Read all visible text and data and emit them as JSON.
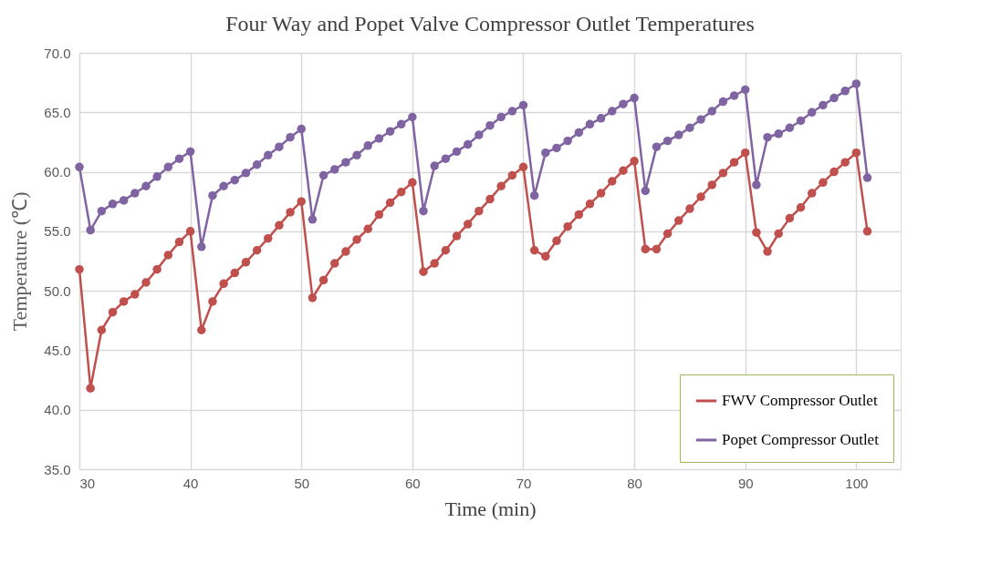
{
  "chart_data": {
    "type": "line",
    "title": "Four Way and Popet Valve  Compressor Outlet Temperatures",
    "xlabel": "Time (min)",
    "ylabel": "Temperature (℃)",
    "x": [
      30,
      31,
      32,
      33,
      34,
      35,
      36,
      37,
      38,
      39,
      40,
      41,
      42,
      43,
      44,
      45,
      46,
      47,
      48,
      49,
      50,
      51,
      52,
      53,
      54,
      55,
      56,
      57,
      58,
      59,
      60,
      61,
      62,
      63,
      64,
      65,
      66,
      67,
      68,
      69,
      70,
      71,
      72,
      73,
      74,
      75,
      76,
      77,
      78,
      79,
      80,
      81,
      82,
      83,
      84,
      85,
      86,
      87,
      88,
      89,
      90,
      91,
      92,
      93,
      94,
      95,
      96,
      97,
      98,
      99,
      100,
      101
    ],
    "series": [
      {
        "name": "FWV Compressor Outlet",
        "color": "#c0504d",
        "values": [
          51.8,
          41.8,
          46.7,
          48.2,
          49.1,
          49.7,
          50.7,
          51.8,
          53.0,
          54.1,
          55.0,
          46.7,
          49.1,
          50.6,
          51.5,
          52.4,
          53.4,
          54.4,
          55.5,
          56.6,
          57.5,
          49.4,
          50.9,
          52.3,
          53.3,
          54.3,
          55.2,
          56.4,
          57.4,
          58.3,
          59.1,
          51.6,
          52.3,
          53.4,
          54.6,
          55.6,
          56.7,
          57.7,
          58.8,
          59.7,
          60.4,
          53.4,
          52.9,
          54.2,
          55.4,
          56.4,
          57.3,
          58.2,
          59.2,
          60.1,
          60.9,
          53.5,
          53.5,
          54.8,
          55.9,
          56.9,
          57.9,
          58.9,
          59.9,
          60.8,
          61.6,
          54.9,
          53.3,
          54.8,
          56.1,
          57.0,
          58.2,
          59.1,
          60.0,
          60.8,
          61.6,
          55.0
        ]
      },
      {
        "name": "Popet Compressor Outlet",
        "color": "#8064a2",
        "values": [
          60.4,
          55.1,
          56.7,
          57.3,
          57.6,
          58.2,
          58.8,
          59.6,
          60.4,
          61.1,
          61.7,
          53.7,
          58.0,
          58.8,
          59.3,
          59.9,
          60.6,
          61.4,
          62.1,
          62.9,
          63.6,
          56.0,
          59.7,
          60.2,
          60.8,
          61.4,
          62.2,
          62.8,
          63.4,
          64.0,
          64.6,
          56.7,
          60.5,
          61.1,
          61.7,
          62.3,
          63.1,
          63.9,
          64.6,
          65.1,
          65.6,
          58.0,
          61.6,
          62.0,
          62.6,
          63.3,
          64.0,
          64.5,
          65.1,
          65.7,
          66.2,
          58.4,
          62.1,
          62.6,
          63.1,
          63.7,
          64.4,
          65.1,
          65.9,
          66.4,
          66.9,
          58.9,
          62.9,
          63.2,
          63.7,
          64.3,
          65.0,
          65.6,
          66.2,
          66.8,
          67.4,
          59.5
        ]
      }
    ],
    "xlim": [
      30,
      104
    ],
    "xticks": [
      30,
      40,
      50,
      60,
      70,
      80,
      90,
      100
    ],
    "ylim": [
      35,
      70
    ],
    "yticks": [
      {
        "value": 35,
        "label": "35.0"
      },
      {
        "value": 40,
        "label": "40.0"
      },
      {
        "value": 45,
        "label": "45.0"
      },
      {
        "value": 50,
        "label": "50.0"
      },
      {
        "value": 55,
        "label": "55.0"
      },
      {
        "value": 60,
        "label": "60.0"
      },
      {
        "value": 65,
        "label": "65.0"
      },
      {
        "value": 70,
        "label": "70.0"
      }
    ],
    "grid": true,
    "legend": "bottom right",
    "marker": "circle",
    "line_style": "solid"
  }
}
